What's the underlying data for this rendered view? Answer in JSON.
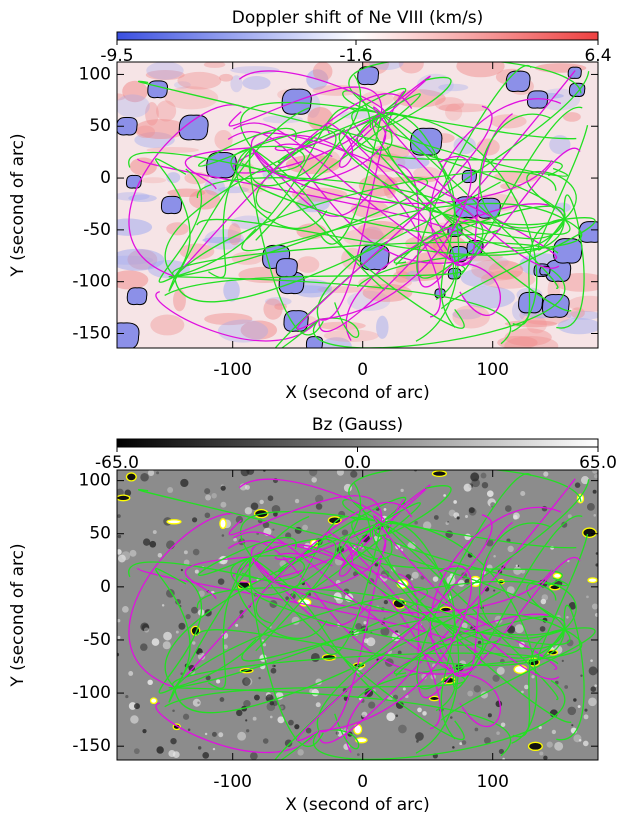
{
  "chart_data": [
    {
      "type": "image",
      "title": "Doppler shift of Ne VIII (km/s)",
      "clim": [
        -9.5,
        6.4
      ],
      "cticks": [
        -9.5,
        -1.6,
        6.4
      ],
      "colormap": [
        "#3a4fe0",
        "#ffffff",
        "#ee4040"
      ],
      "xlabel": "X (second of arc)",
      "ylabel": "Y (second of arc)",
      "xlim": [
        -189,
        181
      ],
      "xticks": [
        -100,
        0,
        100
      ],
      "ylim": [
        -164,
        112
      ],
      "yticks": [
        100,
        50,
        0,
        -50,
        -100,
        -150
      ]
    },
    {
      "type": "image",
      "title": "Bz (Gauss)",
      "clim": [
        -65,
        65
      ],
      "cticks": [
        {
          "value": -65,
          "label": "-65.0"
        },
        {
          "value": 0,
          "label": "0.0"
        },
        {
          "value": 65,
          "label": "65.0"
        }
      ],
      "colormap": [
        "#000000",
        "#ffffff"
      ],
      "xlabel": "X (second of arc)",
      "ylabel": "Y (second of arc)",
      "xlim": [
        -189,
        181
      ],
      "xticks": [
        -100,
        0,
        100
      ],
      "ylim": [
        -163,
        110
      ],
      "yticks": [
        100,
        50,
        0,
        -50,
        -100,
        -150
      ]
    }
  ]
}
